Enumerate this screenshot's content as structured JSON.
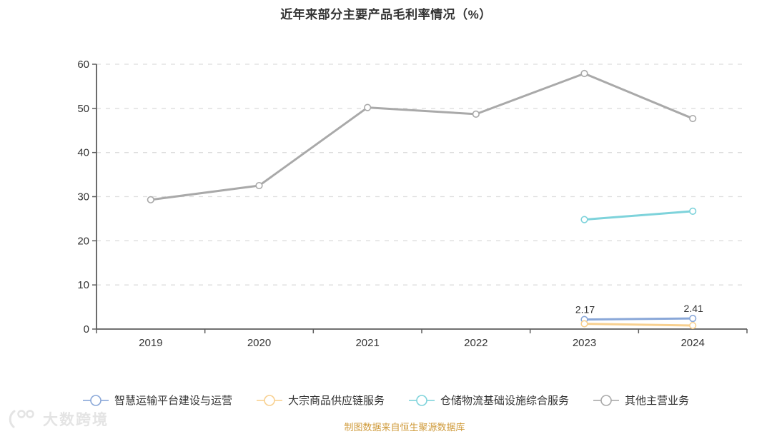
{
  "title": "近年来部分主要产品毛利率情况（%）",
  "footer": {
    "source_note": "制图数据来自恒生聚源数据库"
  },
  "watermark": {
    "text": "大数跨境",
    "logo_icon": "smiley-100-logo-icon"
  },
  "colors": {
    "axis": "#5c5c5c",
    "grid": "#dddddd",
    "tick_text": "#333333",
    "title_text": "#333333",
    "source_text": "#cf9a3a",
    "watermark_text": "#e4e4e4",
    "marker_fill": "#ffffff"
  },
  "chart_data": {
    "type": "line",
    "title": "近年来部分主要产品毛利率情况（%）",
    "categories": [
      "2019",
      "2020",
      "2021",
      "2022",
      "2023",
      "2024"
    ],
    "series": [
      {
        "name": "智慧运输平台建设与运营",
        "color": "#89a7d8",
        "values": [
          null,
          null,
          null,
          null,
          2.17,
          2.41
        ],
        "labels": [
          null,
          null,
          null,
          null,
          "2.17",
          "2.41"
        ]
      },
      {
        "name": "大宗商品供应链服务",
        "color": "#f8d08f",
        "values": [
          null,
          null,
          null,
          null,
          1.2,
          0.8
        ],
        "labels": null
      },
      {
        "name": "仓储物流基础设施综合服务",
        "color": "#7ed3db",
        "values": [
          null,
          null,
          null,
          null,
          24.8,
          26.7
        ],
        "labels": null
      },
      {
        "name": "其他主营业务",
        "color": "#a9a9a9",
        "values": [
          29.3,
          32.5,
          50.2,
          48.7,
          57.9,
          47.7
        ],
        "labels": null
      }
    ],
    "xlabel": "",
    "ylabel": "",
    "ylim": [
      0,
      60
    ],
    "ytick_step": 10,
    "grid": "horizontal-dashed",
    "legend_position": "bottom",
    "marker": "hollow-circle"
  }
}
